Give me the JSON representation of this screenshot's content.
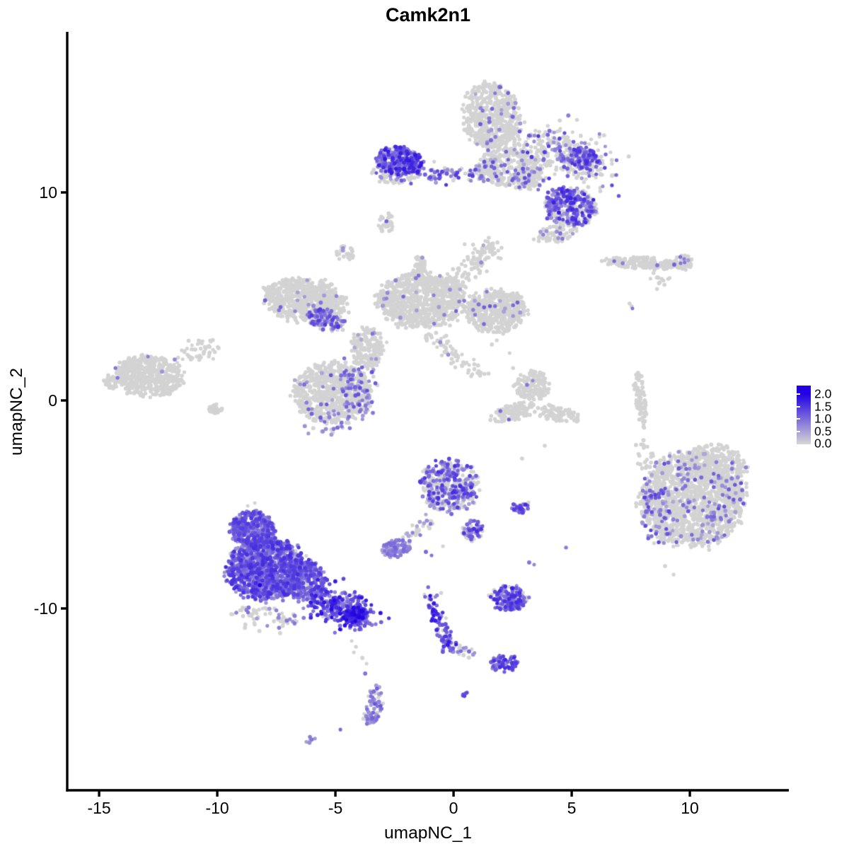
{
  "title": "Camk2n1",
  "axes": {
    "x": {
      "label": "umapNC_1",
      "ticks": [
        "-15",
        "-10",
        "-5",
        "0",
        "5",
        "10"
      ],
      "tick_values": [
        -15,
        -10,
        -5,
        0,
        5,
        10
      ]
    },
    "y": {
      "label": "umapNC_2",
      "ticks": [
        "10",
        "0",
        "-10"
      ],
      "tick_values": [
        10,
        0,
        -10
      ]
    }
  },
  "legend": {
    "labels": [
      "2.0",
      "1.5",
      "1.0",
      "0.5",
      "0.0"
    ],
    "values": [
      2.0,
      1.5,
      1.0,
      0.5,
      0.0
    ],
    "color_low": "#D3D3D3",
    "color_high": "#2101E3"
  },
  "chart_data": {
    "type": "scatter",
    "title": "Camk2n1",
    "xlabel": "umapNC_1",
    "ylabel": "umapNC_2",
    "xlim": [
      -16.35,
      14.19
    ],
    "ylim": [
      -18.74,
      17.72
    ],
    "x_ticks": [
      -15,
      -10,
      -5,
      0,
      5,
      10
    ],
    "y_ticks": [
      10,
      0,
      -10
    ],
    "color_scale": {
      "low": "#D3D3D3",
      "high": "#2101E3",
      "domain": [
        0,
        2
      ]
    },
    "point_radius_px": 2.75,
    "seed": 42,
    "clusters": [
      {
        "id": "top-grey-blob",
        "type": "blob",
        "cx": 1.62,
        "cy": 13.64,
        "sx": 1.2,
        "sy": 1.6,
        "rot": 10,
        "n": 550,
        "frac": 0.05,
        "expr": [
          0.4,
          1.2
        ]
      },
      {
        "id": "top-grey-lower",
        "type": "blob",
        "cx": 2.37,
        "cy": 11.26,
        "sx": 1.35,
        "sy": 0.95,
        "rot": 0,
        "n": 320,
        "frac": 0.1,
        "expr": [
          0.4,
          1.3
        ]
      },
      {
        "id": "top-right-arm",
        "type": "line",
        "x1": 3.41,
        "y1": 12.45,
        "x2": 6.26,
        "y2": 11.09,
        "w": 0.62,
        "n": 300,
        "frac": 0.28,
        "expr": [
          0.5,
          1.5
        ]
      },
      {
        "id": "top-right-armtip",
        "type": "blob",
        "cx": 5.51,
        "cy": 11.6,
        "sx": 0.7,
        "sy": 0.55,
        "rot": 0,
        "n": 130,
        "frac": 0.55,
        "expr": [
          0.6,
          1.6
        ]
      },
      {
        "id": "top-left-purple",
        "type": "blob",
        "cx": -2.28,
        "cy": 11.5,
        "sx": 0.95,
        "sy": 0.7,
        "rot": -5,
        "n": 290,
        "frac": 0.8,
        "expr": [
          0.6,
          1.8
        ]
      },
      {
        "id": "top-left-base",
        "type": "blob",
        "cx": -2.43,
        "cy": 10.92,
        "sx": 1.05,
        "sy": 0.5,
        "rot": 0,
        "n": 80,
        "frac": 0.3,
        "expr": [
          0.5,
          1.2
        ]
      },
      {
        "id": "top-purple-streak",
        "type": "line",
        "x1": -1.38,
        "y1": 10.85,
        "x2": 1.77,
        "y2": 10.99,
        "w": 0.22,
        "n": 90,
        "frac": 0.6,
        "expr": [
          0.5,
          1.5
        ]
      },
      {
        "id": "top-mid-patch",
        "type": "blob",
        "cx": 3.11,
        "cy": 10.58,
        "sx": 0.8,
        "sy": 0.5,
        "rot": 0,
        "n": 90,
        "frac": 0.25,
        "expr": [
          0.5,
          1.3
        ]
      },
      {
        "id": "top-right-purple",
        "type": "blob",
        "cx": 4.94,
        "cy": 9.32,
        "sx": 1.1,
        "sy": 0.9,
        "rot": -15,
        "n": 340,
        "frac": 0.62,
        "expr": [
          0.5,
          1.7
        ]
      },
      {
        "id": "top-right-under",
        "type": "blob",
        "cx": 4.4,
        "cy": 8.03,
        "sx": 0.95,
        "sy": 0.42,
        "rot": 10,
        "n": 70,
        "frac": 0.12,
        "expr": [
          0.4,
          1.0
        ]
      },
      {
        "id": "small-b1",
        "type": "blob",
        "cx": -2.87,
        "cy": 8.54,
        "sx": 0.38,
        "sy": 0.48,
        "rot": 0,
        "n": 30,
        "frac": 0.0,
        "expr": [
          0,
          0
        ]
      },
      {
        "id": "small-b2",
        "type": "blob",
        "cx": -4.58,
        "cy": 7.11,
        "sx": 0.38,
        "sy": 0.4,
        "rot": 0,
        "n": 32,
        "frac": 0.09,
        "expr": [
          0.4,
          0.7
        ]
      },
      {
        "id": "small-b3",
        "type": "line",
        "x1": -5.36,
        "y1": 5.99,
        "x2": -5.66,
        "y2": 4.8,
        "w": 0.18,
        "n": 24,
        "frac": 0.0,
        "expr": [
          0,
          0
        ]
      },
      {
        "id": "mid-left-wing",
        "type": "blob",
        "cx": -6.32,
        "cy": 4.8,
        "sx": 1.7,
        "sy": 1.05,
        "rot": -12,
        "n": 650,
        "frac": 0.02,
        "expr": [
          0.5,
          1.1
        ]
      },
      {
        "id": "mid-left-purple",
        "type": "blob",
        "cx": -5.36,
        "cy": 3.88,
        "sx": 0.8,
        "sy": 0.55,
        "rot": -20,
        "n": 110,
        "frac": 0.7,
        "expr": [
          0.5,
          1.5
        ]
      },
      {
        "id": "mid-central",
        "type": "blob",
        "cx": -1.38,
        "cy": 4.8,
        "sx": 1.85,
        "sy": 1.3,
        "rot": 0,
        "n": 850,
        "frac": 0.02,
        "expr": [
          0.4,
          1.1
        ]
      },
      {
        "id": "mid-top-arm",
        "type": "line",
        "x1": -0.33,
        "y1": 5.31,
        "x2": 1.77,
        "y2": 7.52,
        "w": 0.3,
        "n": 130,
        "frac": 0.04,
        "expr": [
          0.4,
          1.0
        ]
      },
      {
        "id": "mid-stalk",
        "type": "blob",
        "cx": -1.47,
        "cy": 6.39,
        "sx": 0.3,
        "sy": 0.6,
        "rot": 0,
        "n": 60,
        "frac": 0.03,
        "expr": [
          0.4,
          0.9
        ]
      },
      {
        "id": "mid-right-lobe",
        "type": "blob",
        "cx": 1.77,
        "cy": 4.29,
        "sx": 1.3,
        "sy": 1.05,
        "rot": 0,
        "n": 480,
        "frac": 0.03,
        "expr": [
          0.4,
          1.2
        ]
      },
      {
        "id": "mid-bottom-lobe",
        "type": "blob",
        "cx": -5.12,
        "cy": 0.37,
        "sx": 1.6,
        "sy": 1.45,
        "rot": 0,
        "n": 700,
        "frac": 0.05,
        "expr": [
          0.4,
          1.2
        ]
      },
      {
        "id": "mid-bottom-purple-arc",
        "type": "line",
        "x1": -4.22,
        "y1": 1.39,
        "x2": -3.86,
        "y2": -0.65,
        "w": 0.35,
        "n": 95,
        "frac": 0.75,
        "expr": [
          0.5,
          1.4
        ]
      },
      {
        "id": "mid-bottom-edge",
        "type": "line",
        "x1": -5.87,
        "y1": -1.16,
        "x2": -4.37,
        "y2": -0.88,
        "w": 0.3,
        "n": 30,
        "frac": 0.5,
        "expr": [
          0.5,
          1.1
        ]
      },
      {
        "id": "mid-diag-streak",
        "type": "line",
        "x1": -0.93,
        "y1": 3.1,
        "x2": 1.32,
        "y2": 1.05,
        "w": 0.22,
        "n": 70,
        "frac": 0.02,
        "expr": [
          0.4,
          0.8
        ]
      },
      {
        "id": "mid-neck",
        "type": "blob",
        "cx": -3.62,
        "cy": 2.52,
        "sx": 0.75,
        "sy": 0.95,
        "rot": 0,
        "n": 180,
        "frac": 0.04,
        "expr": [
          0.4,
          1.0
        ]
      },
      {
        "id": "far-left-main",
        "type": "blob",
        "cx": -12.9,
        "cy": 1.16,
        "sx": 1.45,
        "sy": 1.0,
        "rot": -8,
        "n": 520,
        "frac": 0.004,
        "expr": [
          0.6,
          0.9
        ]
      },
      {
        "id": "far-left-arm",
        "type": "line",
        "x1": -11.26,
        "y1": 2.07,
        "x2": -10.21,
        "y2": 2.76,
        "w": 0.25,
        "n": 50,
        "frac": 0.0,
        "expr": [
          0,
          0
        ]
      },
      {
        "id": "far-left-nose",
        "type": "blob",
        "cx": -14.46,
        "cy": 0.88,
        "sx": 0.35,
        "sy": 0.35,
        "rot": 0,
        "n": 35,
        "frac": 0.0,
        "expr": [
          0,
          0
        ]
      },
      {
        "id": "far-left-bump",
        "type": "blob",
        "cx": -10.06,
        "cy": -0.41,
        "sx": 0.3,
        "sy": 0.25,
        "rot": 0,
        "n": 25,
        "frac": 0.0,
        "expr": [
          0,
          0
        ]
      },
      {
        "id": "right-ribbon",
        "type": "blob",
        "cx": 8.11,
        "cy": 6.6,
        "sx": 1.7,
        "sy": 0.3,
        "rot": -4,
        "n": 180,
        "frac": 0.0,
        "expr": [
          0,
          0
        ]
      },
      {
        "id": "right-ribbon-end",
        "type": "blob",
        "cx": 9.7,
        "cy": 6.63,
        "sx": 0.45,
        "sy": 0.35,
        "rot": 0,
        "n": 50,
        "frac": 0.06,
        "expr": [
          0.5,
          1.0
        ]
      },
      {
        "id": "right-ribbon-streak",
        "type": "line",
        "x1": 8.5,
        "y1": 6.05,
        "x2": 9.01,
        "y2": 5.58,
        "w": 0.15,
        "n": 14,
        "frac": 0.0,
        "expr": [
          0,
          0
        ]
      },
      {
        "id": "center-small-blob",
        "type": "blob",
        "cx": 3.32,
        "cy": 0.71,
        "sx": 0.75,
        "sy": 0.7,
        "rot": 0,
        "n": 150,
        "frac": 0.015,
        "expr": [
          0.5,
          0.9
        ]
      },
      {
        "id": "center-crescent-left",
        "type": "blob",
        "cx": 2.51,
        "cy": -0.58,
        "sx": 1.0,
        "sy": 0.4,
        "rot": 20,
        "n": 100,
        "frac": 0.0,
        "expr": [
          0,
          0
        ]
      },
      {
        "id": "center-crescent-right",
        "type": "blob",
        "cx": 4.4,
        "cy": -0.65,
        "sx": 0.95,
        "sy": 0.38,
        "rot": -12,
        "n": 90,
        "frac": 0.0,
        "expr": [
          0,
          0
        ]
      },
      {
        "id": "right-strip",
        "type": "blob",
        "cx": 7.9,
        "cy": 0.14,
        "sx": 0.22,
        "sy": 1.3,
        "rot": 6,
        "n": 90,
        "frac": 0.0,
        "expr": [
          0,
          0
        ]
      },
      {
        "id": "right-big-blob",
        "type": "blob",
        "cx": 10.09,
        "cy": -4.76,
        "sx": 2.2,
        "sy": 2.25,
        "rot": 0,
        "n": 1500,
        "frac": 0.09,
        "expr": [
          0.4,
          1.3
        ]
      },
      {
        "id": "right-big-topright",
        "type": "blob",
        "cx": 11.2,
        "cy": -3.03,
        "sx": 1.3,
        "sy": 0.85,
        "rot": -20,
        "n": 250,
        "frac": 0.06,
        "expr": [
          0.4,
          1.1
        ]
      },
      {
        "id": "right-big-leftband",
        "type": "blob",
        "cx": 8.5,
        "cy": -5.41,
        "sx": 0.7,
        "sy": 1.5,
        "rot": 8,
        "n": 85,
        "frac": 0.5,
        "expr": [
          0.5,
          1.4
        ]
      },
      {
        "id": "right-big-sprinkle",
        "type": "blob",
        "cx": 8.11,
        "cy": -2.59,
        "sx": 0.4,
        "sy": 0.7,
        "rot": 0,
        "n": 22,
        "frac": 0.0,
        "expr": [
          0,
          0
        ]
      },
      {
        "id": "center-head",
        "type": "blob",
        "cx": -0.15,
        "cy": -4.12,
        "sx": 1.25,
        "sy": 1.25,
        "rot": 0,
        "n": 420,
        "frac": 0.5,
        "expr": [
          0.4,
          1.6
        ]
      },
      {
        "id": "center-chin",
        "type": "blob",
        "cx": 0.81,
        "cy": -6.26,
        "sx": 0.45,
        "sy": 0.55,
        "rot": 0,
        "n": 55,
        "frac": 0.75,
        "expr": [
          0.6,
          1.6
        ]
      },
      {
        "id": "center-neck",
        "type": "line",
        "x1": -0.87,
        "y1": -5.68,
        "x2": -2.13,
        "y2": -6.87,
        "w": 0.2,
        "n": 30,
        "frac": 0.45,
        "expr": [
          0.4,
          1.0
        ]
      },
      {
        "id": "center-lightpurple",
        "type": "blob",
        "cx": -2.42,
        "cy": -7.11,
        "sx": 0.62,
        "sy": 0.42,
        "rot": 10,
        "n": 95,
        "frac": 0.78,
        "expr": [
          0.4,
          1.1
        ]
      },
      {
        "id": "center-patch",
        "type": "blob",
        "cx": 2.81,
        "cy": -5.14,
        "sx": 0.38,
        "sy": 0.28,
        "rot": 0,
        "n": 30,
        "frac": 0.85,
        "expr": [
          0.7,
          1.6
        ]
      },
      {
        "id": "big-purple-toplobe",
        "type": "blob",
        "cx": -8.5,
        "cy": -6.19,
        "sx": 0.95,
        "sy": 0.9,
        "rot": 0,
        "n": 400,
        "frac": 0.88,
        "expr": [
          0.5,
          1.5
        ]
      },
      {
        "id": "big-purple-main",
        "type": "blob",
        "cx": -7.87,
        "cy": -8.13,
        "sx": 1.7,
        "sy": 1.45,
        "rot": 0,
        "n": 1150,
        "frac": 0.85,
        "expr": [
          0.5,
          1.6
        ]
      },
      {
        "id": "big-purple-rightmid",
        "type": "blob",
        "cx": -6.32,
        "cy": -8.64,
        "sx": 0.95,
        "sy": 0.95,
        "rot": 0,
        "n": 320,
        "frac": 0.82,
        "expr": [
          0.5,
          1.5
        ]
      },
      {
        "id": "big-purple-tail",
        "type": "line",
        "x1": -5.72,
        "y1": -9.39,
        "x2": -3.86,
        "y2": -10.48,
        "w": 0.42,
        "n": 300,
        "frac": 0.88,
        "expr": [
          0.7,
          1.9
        ]
      },
      {
        "id": "big-purple-tailtip",
        "type": "blob",
        "cx": -4.16,
        "cy": -10.34,
        "sx": 0.5,
        "sy": 0.4,
        "rot": 25,
        "n": 120,
        "frac": 0.9,
        "expr": [
          0.9,
          2.0
        ]
      },
      {
        "id": "big-purple-fringe",
        "type": "line",
        "x1": -9.31,
        "y1": -10.17,
        "x2": -6.62,
        "y2": -10.61,
        "w": 0.25,
        "n": 70,
        "frac": 0.25,
        "expr": [
          0.5,
          1.0
        ]
      },
      {
        "id": "bottom-j-cluster",
        "type": "blob",
        "cx": -3.38,
        "cy": -14.66,
        "sx": 0.38,
        "sy": 0.95,
        "rot": -10,
        "n": 70,
        "frac": 0.68,
        "expr": [
          0.4,
          1.2
        ]
      },
      {
        "id": "bottom-j-hook",
        "type": "blob",
        "cx": -3.56,
        "cy": -15.37,
        "sx": 0.3,
        "sy": 0.2,
        "rot": 0,
        "n": 12,
        "frac": 0.5,
        "expr": [
          0.4,
          0.9
        ]
      },
      {
        "id": "bottom-smudge",
        "type": "blob",
        "cx": -6.05,
        "cy": -16.33,
        "sx": 0.22,
        "sy": 0.15,
        "rot": 30,
        "n": 7,
        "frac": 0.75,
        "expr": [
          0.5,
          0.9
        ]
      },
      {
        "id": "bottom-streak",
        "type": "line",
        "x1": -0.99,
        "y1": -9.35,
        "x2": -0.21,
        "y2": -11.84,
        "w": 0.16,
        "n": 95,
        "frac": 0.85,
        "expr": [
          0.7,
          1.8
        ]
      },
      {
        "id": "bottom-branch",
        "type": "line",
        "x1": -0.09,
        "y1": -11.87,
        "x2": 0.87,
        "y2": -12.11,
        "w": 0.15,
        "n": 22,
        "frac": 0.4,
        "expr": [
          0.5,
          1.2
        ]
      },
      {
        "id": "bottom-right-purple",
        "type": "blob",
        "cx": 2.13,
        "cy": -12.65,
        "sx": 0.6,
        "sy": 0.42,
        "rot": 0,
        "n": 75,
        "frac": 0.8,
        "expr": [
          0.7,
          1.7
        ]
      },
      {
        "id": "bottom-oval",
        "type": "blob",
        "cx": 0.48,
        "cy": -14.15,
        "sx": 0.13,
        "sy": 0.1,
        "rot": 40,
        "n": 5,
        "frac": 1.0,
        "expr": [
          1.1,
          1.4
        ]
      },
      {
        "id": "bottom-small-purple",
        "type": "blob",
        "cx": 2.34,
        "cy": -9.49,
        "sx": 0.8,
        "sy": 0.6,
        "rot": 0,
        "n": 150,
        "frac": 0.78,
        "expr": [
          0.6,
          1.7
        ]
      }
    ],
    "singles": [
      [
        -2.84,
        8.61,
        1.1
      ],
      [
        1.62,
        2.69,
        0
      ],
      [
        1.83,
        2.89,
        0
      ],
      [
        2.37,
        2.28,
        0
      ],
      [
        2.52,
        1.56,
        0
      ],
      [
        3.86,
        -2.18,
        0
      ],
      [
        2.9,
        -2.79,
        0
      ],
      [
        -14.31,
        1.56,
        0.9
      ],
      [
        -14.22,
        1.09,
        0.9
      ],
      [
        -12.93,
        2.11,
        0.8
      ],
      [
        -11.8,
        1.97,
        0.7
      ],
      [
        6.8,
        6.7,
        1.0
      ],
      [
        7.16,
        6.6,
        0.8
      ],
      [
        8.62,
        6.5,
        0.9
      ],
      [
        9.34,
        6.53,
        1.1
      ],
      [
        9.61,
        6.6,
        0.9
      ],
      [
        9.76,
        6.8,
        0.8
      ],
      [
        7.54,
        4.52,
        0
      ],
      [
        7.57,
        4.42,
        0.9
      ],
      [
        7.45,
        4.66,
        0
      ],
      [
        1.98,
        -0.51,
        1.0
      ],
      [
        2.34,
        -0.92,
        1.1
      ],
      [
        3.11,
        0.75,
        0.9
      ],
      [
        3.35,
        0.95,
        0.7
      ],
      [
        7.72,
        -2.14,
        0
      ],
      [
        8.95,
        -7.96,
        0
      ],
      [
        9.31,
        -8.37,
        0
      ],
      [
        8.38,
        -6.53,
        0.9
      ],
      [
        -1.17,
        -7.28,
        1.0
      ],
      [
        -0.93,
        -7.45,
        0.9
      ],
      [
        -0.45,
        -7.01,
        0
      ],
      [
        3.2,
        -7.79,
        0.9
      ],
      [
        3.41,
        -7.89,
        0.7
      ],
      [
        3.17,
        -4.9,
        0
      ],
      [
        4.76,
        -7.07,
        0.85
      ],
      [
        -8.2,
        -8.88,
        2.0
      ],
      [
        -8.71,
        -5.07,
        0
      ],
      [
        -8.41,
        -4.93,
        0
      ],
      [
        -4.31,
        -11.56,
        0
      ],
      [
        -4.13,
        -11.84,
        0
      ],
      [
        -4.22,
        -12.11,
        0
      ],
      [
        -3.86,
        -12.38,
        0
      ],
      [
        -3.68,
        -12.65,
        0
      ],
      [
        -3.74,
        -13.13,
        0.9
      ],
      [
        -4.79,
        -15.82,
        1.0
      ],
      [
        -0.99,
        -9.39,
        1.9
      ],
      [
        -0.96,
        -9.56,
        1.5
      ]
    ]
  }
}
